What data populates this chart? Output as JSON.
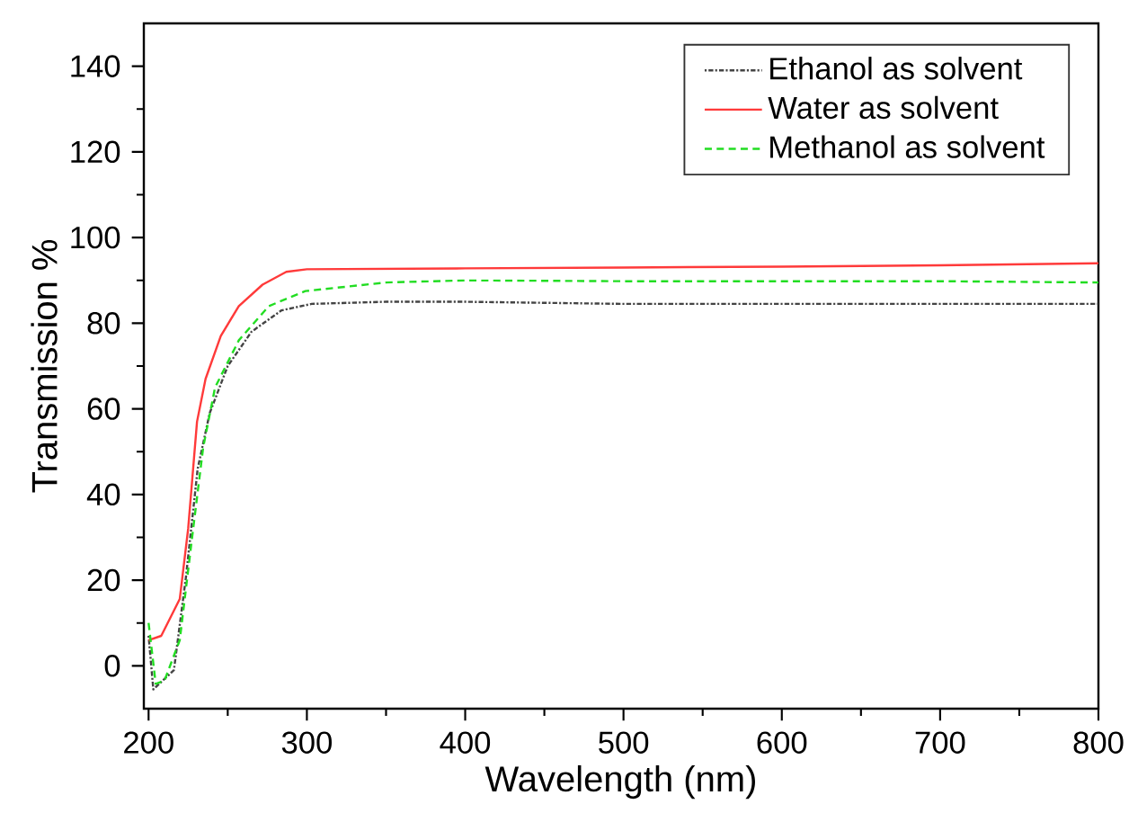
{
  "chart_data": {
    "type": "line",
    "xlabel": "Wavelength (nm)",
    "ylabel": "Transmission %",
    "xlim": [
      197,
      800
    ],
    "ylim": [
      -10,
      150
    ],
    "xticks": [
      200,
      300,
      400,
      500,
      600,
      700,
      800
    ],
    "yticks": [
      0,
      20,
      40,
      60,
      80,
      100,
      120,
      140
    ],
    "grid": false,
    "legend": "top right",
    "marker": "none",
    "series": [
      {
        "name": "Ethanol as solvent",
        "color": "#444444",
        "line_style": "dotted",
        "x": [
          200,
          203,
          206,
          211,
          216,
          223.7,
          231,
          238.6,
          250,
          265,
          284,
          303,
          350,
          400,
          500,
          600,
          700,
          800
        ],
        "values": [
          7,
          -5.5,
          null,
          null,
          -1,
          21,
          46,
          59,
          70,
          78,
          83,
          84.5,
          85,
          85,
          84.5,
          84.5,
          84.5,
          84.5
        ]
      },
      {
        "name": "Water as solvent",
        "color": "#ff3a3a",
        "line_style": "solid",
        "x": [
          200,
          208,
          219.7,
          225,
          230.6,
          236,
          245.6,
          257,
          272,
          287,
          300,
          400,
          500,
          600,
          700,
          800
        ],
        "values": [
          6,
          7,
          15.6,
          32,
          57,
          67,
          77,
          84,
          89,
          92,
          92.6,
          92.8,
          93,
          93.2,
          93.5,
          94
        ]
      },
      {
        "name": "Methanol as solvent",
        "color": "#22dd22",
        "line_style": "dashed",
        "x": [
          200,
          204.5,
          210,
          219.7,
          227,
          234.5,
          242,
          257,
          276,
          299,
          350,
          400,
          500,
          600,
          700,
          800
        ],
        "values": [
          10,
          -4.2,
          -3.5,
          6,
          28.5,
          51,
          65,
          76,
          84,
          87.5,
          89.5,
          90,
          89.8,
          89.8,
          89.8,
          89.5
        ]
      }
    ]
  }
}
